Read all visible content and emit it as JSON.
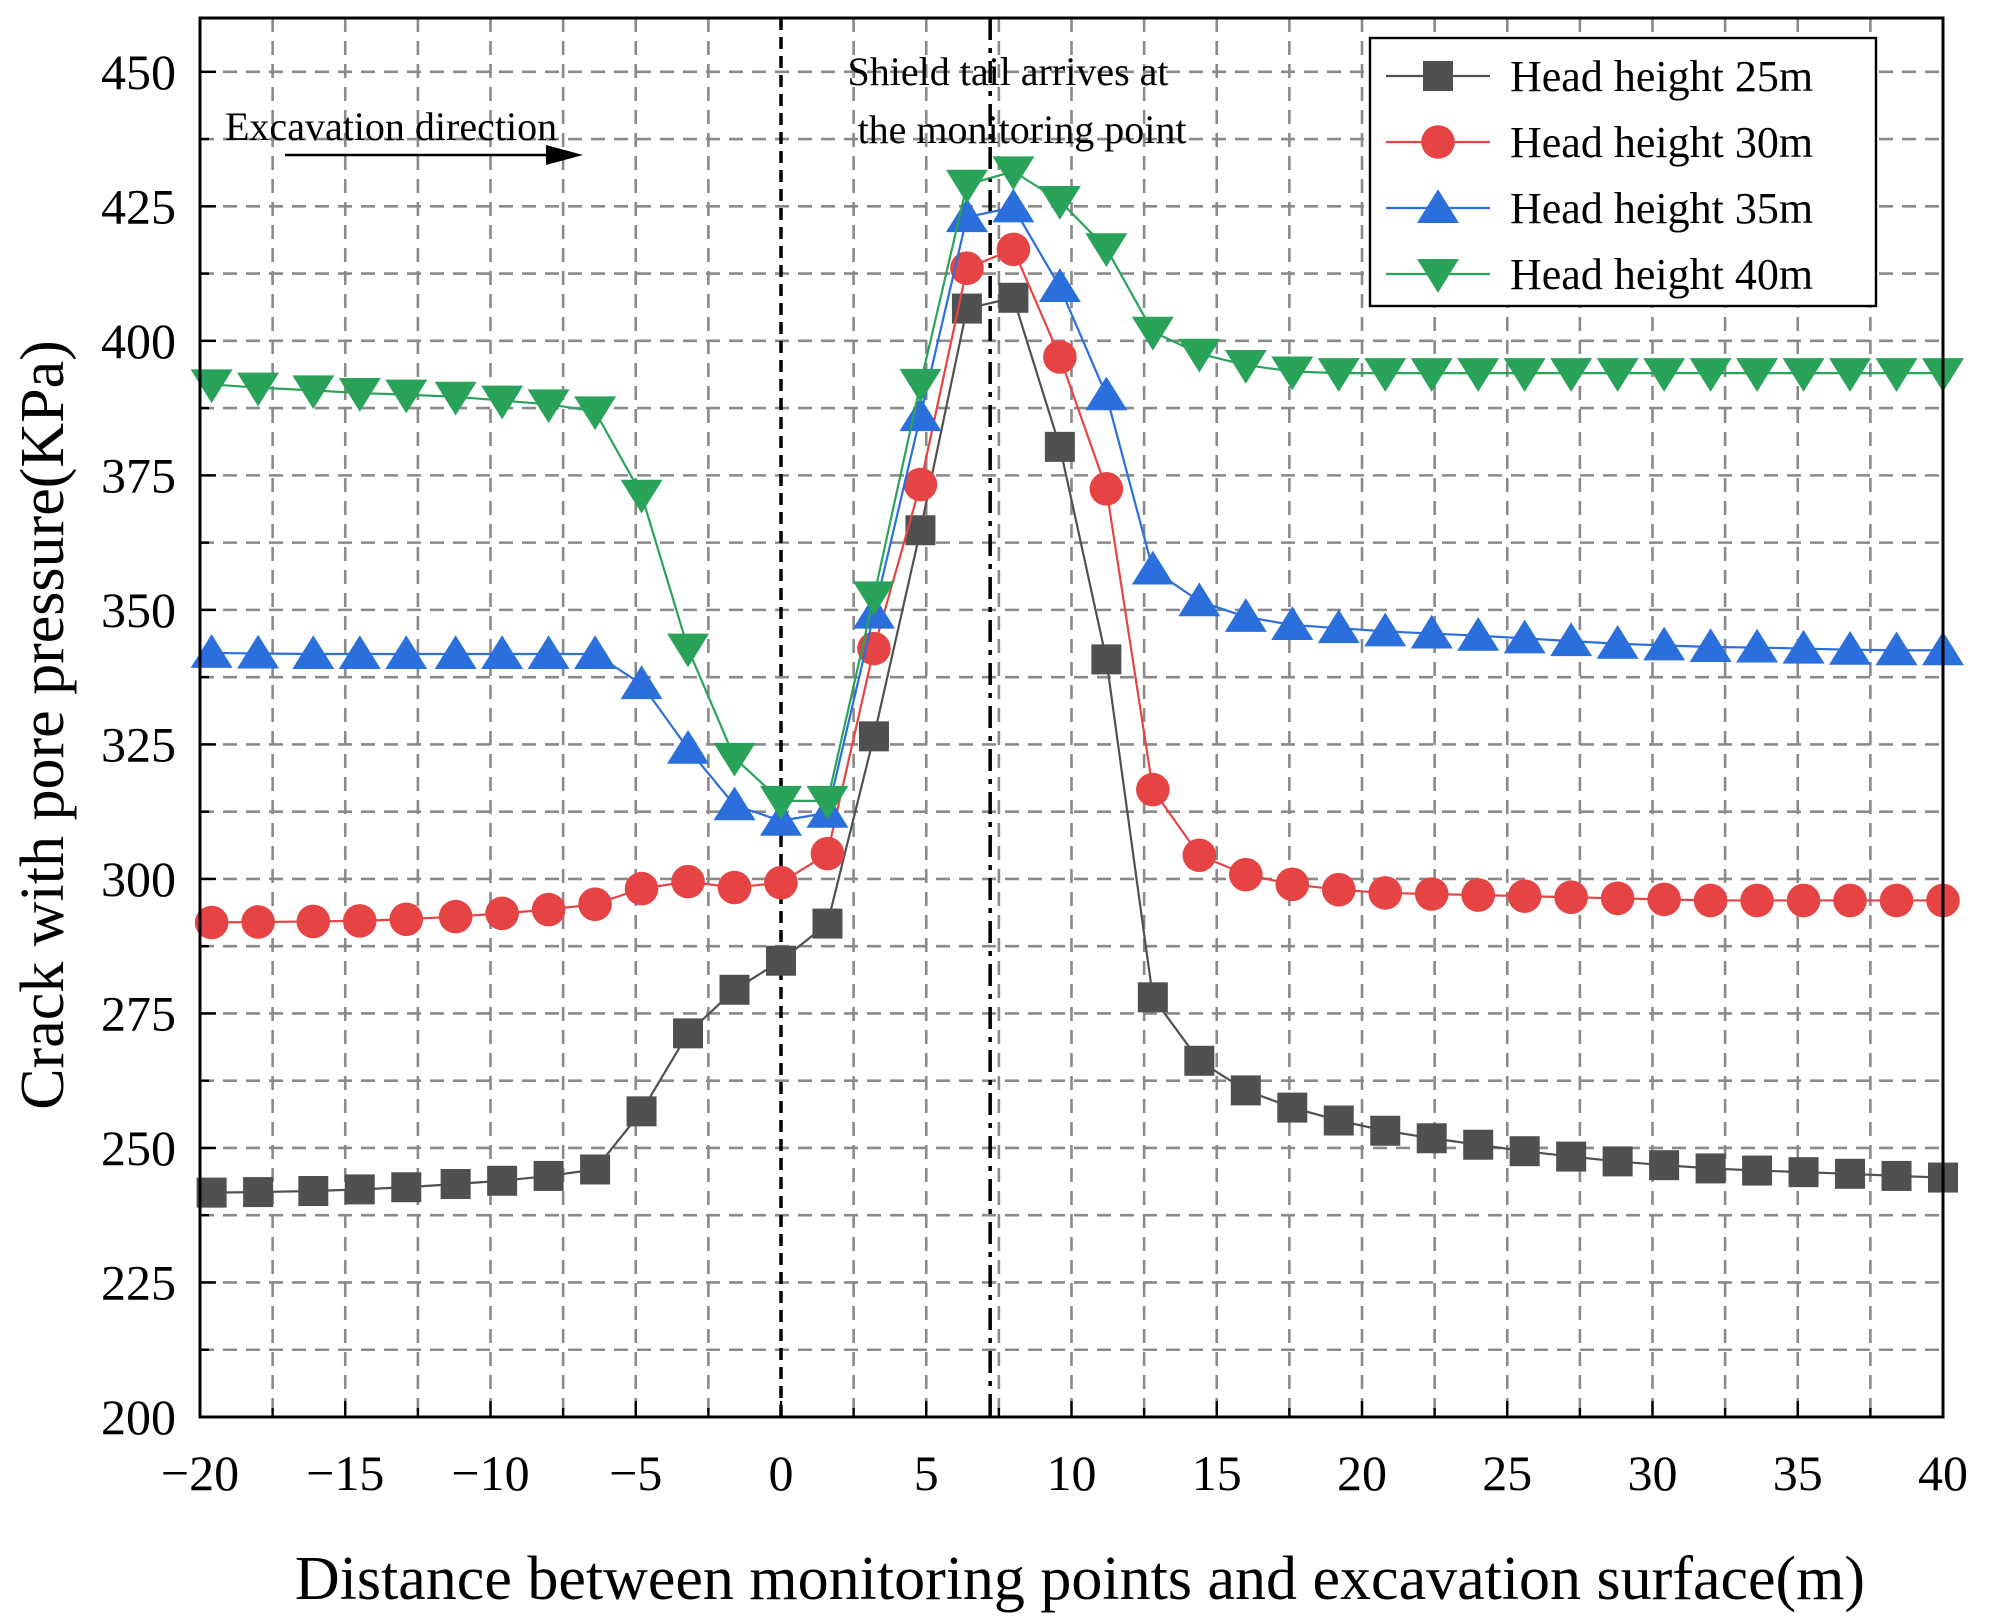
{
  "chart_data": {
    "type": "line",
    "title": "",
    "xlabel": "Distance between monitoring points and excavation surface(m)",
    "ylabel": "Crack with pore pressure(KPa)",
    "xlim": [
      -20,
      40
    ],
    "ylim": [
      200,
      460
    ],
    "xticks": [
      -20,
      -15,
      -10,
      -5,
      0,
      5,
      10,
      15,
      20,
      25,
      30,
      35,
      40
    ],
    "yticks": [
      200,
      225,
      250,
      275,
      300,
      325,
      350,
      375,
      400,
      425,
      450
    ],
    "xtick_labels": [
      "−20",
      "−15",
      "−10",
      "−5",
      "0",
      "5",
      "10",
      "15",
      "20",
      "25",
      "30",
      "35",
      "40"
    ],
    "ytick_labels": [
      "200",
      "225",
      "250",
      "275",
      "300",
      "325",
      "350",
      "375",
      "400",
      "425",
      "450"
    ],
    "grid": true,
    "legend_position": "top-right",
    "x": [
      -19.6,
      -18.0,
      -16.1,
      -14.5,
      -12.9,
      -11.2,
      -9.6,
      -8.0,
      -6.4,
      -4.8,
      -3.2,
      -1.6,
      0.0,
      1.6,
      3.2,
      4.8,
      6.4,
      8.0,
      9.6,
      11.2,
      12.8,
      14.4,
      16.0,
      17.6,
      19.2,
      20.8,
      22.4,
      24.0,
      25.6,
      27.2,
      28.8,
      30.4,
      32.0,
      33.6,
      35.2,
      36.8,
      38.4,
      40.0
    ],
    "series": [
      {
        "name": "Head height 25m",
        "color": "#505050",
        "marker": "square",
        "values": [
          241.7,
          241.8,
          242.0,
          242.3,
          242.7,
          243.3,
          243.9,
          244.8,
          246.0,
          256.8,
          271.3,
          279.4,
          284.8,
          291.7,
          326.5,
          364.8,
          406.0,
          408.0,
          380.3,
          340.8,
          278.0,
          266.2,
          260.7,
          257.5,
          255.1,
          253.2,
          251.8,
          250.6,
          249.4,
          248.4,
          247.5,
          246.8,
          246.2,
          245.8,
          245.5,
          245.2,
          244.8,
          244.5
        ]
      },
      {
        "name": "Head height 30m",
        "color": "#e64345",
        "marker": "circle",
        "values": [
          291.9,
          292.0,
          292.1,
          292.2,
          292.5,
          293.0,
          293.6,
          294.3,
          295.3,
          298.2,
          299.5,
          298.4,
          299.3,
          304.7,
          342.8,
          373.3,
          413.5,
          417.0,
          397.0,
          372.5,
          316.6,
          304.4,
          300.8,
          299.0,
          298.0,
          297.4,
          297.2,
          297.0,
          296.8,
          296.6,
          296.4,
          296.2,
          296.0,
          296.0,
          296.0,
          296.0,
          296.0,
          296.0
        ]
      },
      {
        "name": "Head height 35m",
        "color": "#2a6fdb",
        "marker": "triangle-up",
        "values": [
          342.0,
          341.9,
          341.8,
          341.8,
          341.8,
          341.8,
          341.8,
          341.8,
          341.8,
          336.2,
          324.2,
          313.7,
          310.8,
          312.3,
          349.3,
          386.0,
          423.0,
          424.8,
          410.0,
          389.9,
          357.5,
          351.6,
          348.7,
          347.2,
          346.6,
          346.0,
          345.6,
          345.2,
          344.7,
          344.2,
          343.7,
          343.4,
          343.1,
          343.0,
          342.8,
          342.6,
          342.5,
          342.5
        ]
      },
      {
        "name": "Head height 40m",
        "color": "#2aa35a",
        "marker": "triangle-down",
        "values": [
          391.9,
          391.3,
          390.8,
          390.3,
          390.0,
          389.6,
          388.9,
          388.2,
          386.9,
          371.4,
          342.8,
          322.5,
          314.5,
          314.5,
          352.5,
          392.0,
          429.0,
          431.5,
          426.0,
          417.2,
          401.7,
          397.6,
          395.5,
          394.3,
          394.0,
          394.0,
          394.0,
          394.0,
          394.0,
          394.0,
          394.0,
          394.0,
          394.0,
          394.0,
          394.0,
          394.0,
          394.0,
          394.0
        ]
      }
    ],
    "reference_lines": [
      {
        "x": 0,
        "style": "dashed"
      },
      {
        "x": 7.2,
        "style": "dash-dot"
      }
    ],
    "annotations": {
      "excavation": "Excavation direction",
      "shield_line1": "Shield tail arrives at",
      "shield_line2": "the monitoring point"
    }
  }
}
